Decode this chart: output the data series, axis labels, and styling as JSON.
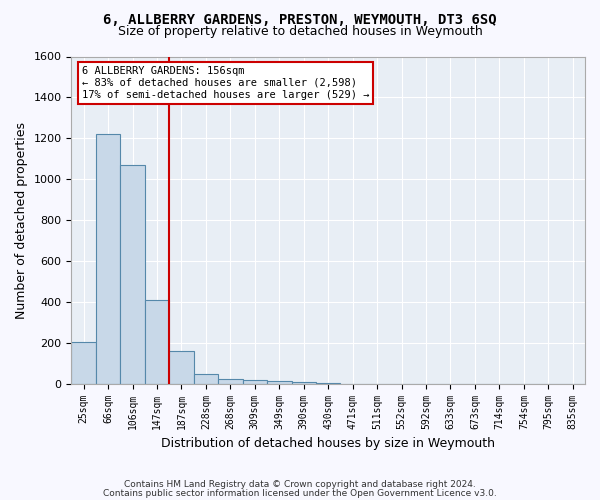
{
  "title": "6, ALLBERRY GARDENS, PRESTON, WEYMOUTH, DT3 6SQ",
  "subtitle": "Size of property relative to detached houses in Weymouth",
  "xlabel": "Distribution of detached houses by size in Weymouth",
  "ylabel": "Number of detached properties",
  "footer_line1": "Contains HM Land Registry data © Crown copyright and database right 2024.",
  "footer_line2": "Contains public sector information licensed under the Open Government Licence v3.0.",
  "bin_labels": [
    "25sqm",
    "66sqm",
    "106sqm",
    "147sqm",
    "187sqm",
    "228sqm",
    "268sqm",
    "309sqm",
    "349sqm",
    "390sqm",
    "430sqm",
    "471sqm",
    "511sqm",
    "552sqm",
    "592sqm",
    "633sqm",
    "673sqm",
    "714sqm",
    "754sqm",
    "795sqm",
    "835sqm"
  ],
  "bar_values": [
    203,
    1220,
    1070,
    410,
    160,
    45,
    25,
    20,
    15,
    10,
    5,
    0,
    0,
    0,
    0,
    0,
    0,
    0,
    0,
    0,
    0
  ],
  "bar_color": "#c8d8e8",
  "bar_edge_color": "#5588aa",
  "vline_color": "#cc0000",
  "vline_pos": 3.5,
  "ylim": [
    0,
    1600
  ],
  "yticks": [
    0,
    200,
    400,
    600,
    800,
    1000,
    1200,
    1400,
    1600
  ],
  "annotation_text": "6 ALLBERRY GARDENS: 156sqm\n← 83% of detached houses are smaller (2,598)\n17% of semi-detached houses are larger (529) →",
  "annotation_box_color": "#cc0000",
  "background_color": "#e8eef5",
  "grid_color": "#ffffff",
  "fig_facecolor": "#f8f8ff"
}
